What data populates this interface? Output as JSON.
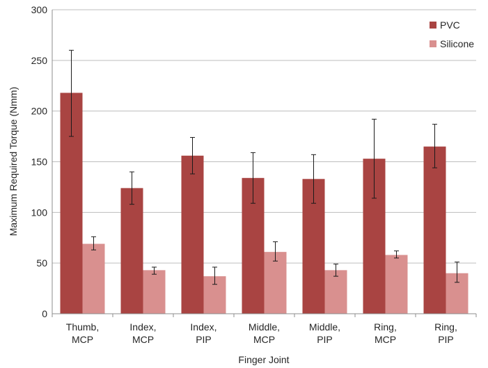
{
  "chart_data": {
    "type": "bar",
    "xlabel": "Finger Joint",
    "ylabel": "Maximum Required Torque (Nmm)",
    "ylim": [
      0,
      300
    ],
    "yticks": [
      0,
      50,
      100,
      150,
      200,
      250,
      300
    ],
    "grid": true,
    "legend_position": "top-right",
    "categories": [
      [
        "Thumb,",
        "MCP"
      ],
      [
        "Index,",
        "MCP"
      ],
      [
        "Index,",
        "PIP"
      ],
      [
        "Middle,",
        "MCP"
      ],
      [
        "Middle,",
        "PIP"
      ],
      [
        "Ring,",
        "MCP"
      ],
      [
        "Ring,",
        "PIP"
      ]
    ],
    "series": [
      {
        "name": "PVC",
        "color": "#a94442",
        "values": [
          218,
          124,
          156,
          134,
          133,
          153,
          165
        ],
        "error_low": [
          175,
          108,
          138,
          109,
          109,
          114,
          144
        ],
        "error_high": [
          260,
          140,
          174,
          159,
          157,
          192,
          187
        ]
      },
      {
        "name": "Silicone",
        "color": "#d9908f",
        "values": [
          69,
          43,
          37,
          61,
          43,
          58,
          40
        ],
        "error_low": [
          63,
          39,
          29,
          52,
          37,
          55,
          31
        ],
        "error_high": [
          76,
          46,
          46,
          71,
          49,
          62,
          51
        ]
      }
    ]
  }
}
